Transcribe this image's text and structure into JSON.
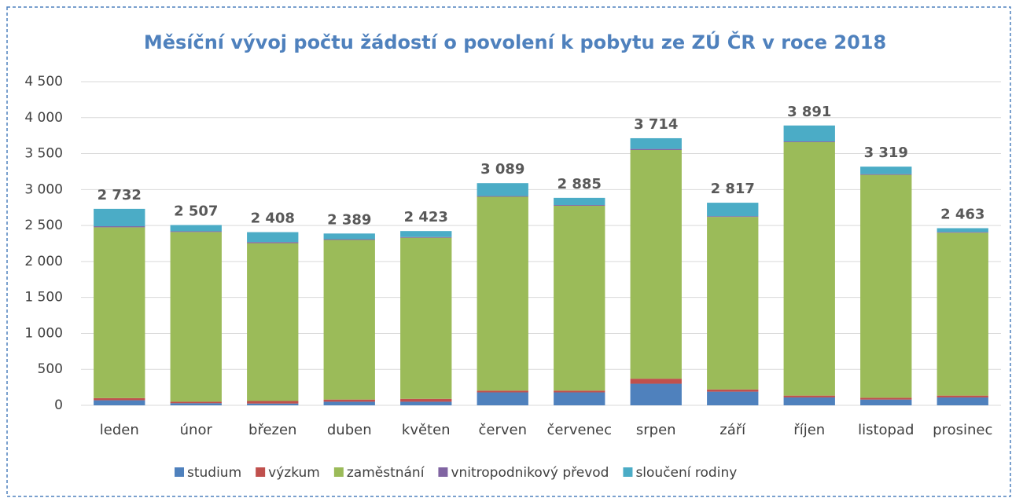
{
  "chart_data": {
    "type": "stacked_bar",
    "title": "Měsíční vývoj počtu žádostí o povolení k pobytu ze ZÚ ČR v roce 2018",
    "categories": [
      "leden",
      "únor",
      "březen",
      "duben",
      "květen",
      "červen",
      "červenec",
      "srpen",
      "září",
      "říjen",
      "listopad",
      "prosinec"
    ],
    "series": [
      {
        "name": "studium",
        "color": "#4f81bd",
        "values": [
          70,
          30,
          25,
          50,
          50,
          180,
          180,
          300,
          190,
          110,
          80,
          110
        ]
      },
      {
        "name": "výzkum",
        "color": "#c0504d",
        "values": [
          30,
          20,
          35,
          30,
          40,
          25,
          25,
          70,
          30,
          25,
          25,
          25
        ]
      },
      {
        "name": "zaměstnání",
        "color": "#9bbb59",
        "values": [
          2375,
          2360,
          2195,
          2220,
          2240,
          2695,
          2570,
          3180,
          2400,
          3525,
          3100,
          2265
        ]
      },
      {
        "name": "vnitropodnikový převod",
        "color": "#8064a2",
        "values": [
          15,
          10,
          15,
          10,
          10,
          10,
          10,
          15,
          10,
          10,
          10,
          10
        ]
      },
      {
        "name": "sloučení rodiny",
        "color": "#4bacc6",
        "values": [
          242,
          87,
          138,
          79,
          83,
          179,
          100,
          149,
          187,
          221,
          104,
          53
        ]
      }
    ],
    "totals": [
      2732,
      2507,
      2408,
      2389,
      2423,
      3089,
      2885,
      3714,
      2817,
      3891,
      3319,
      2463
    ],
    "total_labels": [
      "2 732",
      "2 507",
      "2 408",
      "2 389",
      "2 423",
      "3 089",
      "2 885",
      "3 714",
      "2 817",
      "3 891",
      "3 319",
      "2 463"
    ],
    "ylim": [
      0,
      4500
    ],
    "yticks": [
      0,
      {
        "value": 500,
        "label": "500"
      },
      {
        "value": 1000,
        "label": "1 000"
      },
      {
        "value": 1500,
        "label": "1 500"
      },
      {
        "value": 2000,
        "label": "2 000"
      },
      {
        "value": 2500,
        "label": "2 500"
      },
      {
        "value": 3000,
        "label": "3 000"
      },
      {
        "value": 3500,
        "label": "3 500"
      },
      {
        "value": 4000,
        "label": "4 000"
      },
      {
        "value": 4500,
        "label": "4 500"
      }
    ],
    "grid": true,
    "legend": "bottom"
  }
}
